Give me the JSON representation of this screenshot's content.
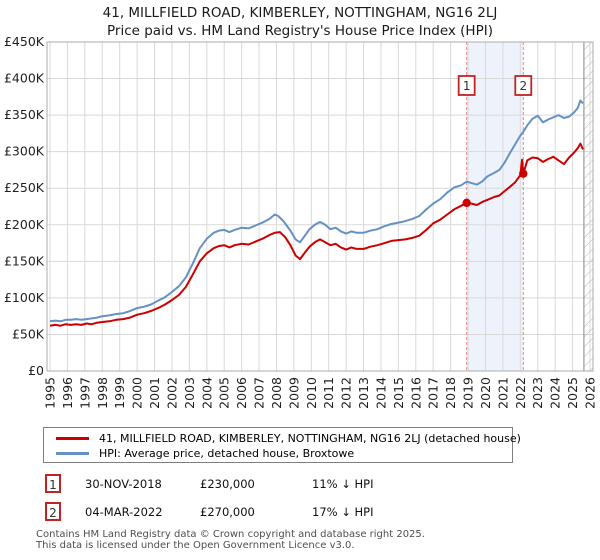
{
  "title": {
    "line1": "41, MILLFIELD ROAD, KIMBERLEY, NOTTINGHAM, NG16 2LJ",
    "line2": "Price paid vs. HM Land Registry's House Price Index (HPI)"
  },
  "chart_data": {
    "type": "line",
    "title": "Price paid vs. HM Land Registry's House Price Index (HPI)",
    "xlim": [
      1995,
      2026
    ],
    "ylim": [
      0,
      450
    ],
    "y_unit": "GBP thousands",
    "grid": true,
    "x_ticks": [
      1995,
      1996,
      1997,
      1998,
      1999,
      2000,
      2001,
      2002,
      2003,
      2004,
      2005,
      2006,
      2007,
      2008,
      2009,
      2010,
      2011,
      2012,
      2013,
      2014,
      2015,
      2016,
      2017,
      2018,
      2019,
      2020,
      2021,
      2022,
      2023,
      2024,
      2025,
      2026
    ],
    "y_ticks": [
      [
        0,
        "£0"
      ],
      [
        50,
        "£50K"
      ],
      [
        100,
        "£100K"
      ],
      [
        150,
        "£150K"
      ],
      [
        200,
        "£200K"
      ],
      [
        250,
        "£250K"
      ],
      [
        300,
        "£300K"
      ],
      [
        350,
        "£350K"
      ],
      [
        400,
        "£400K"
      ],
      [
        450,
        "£450K"
      ]
    ],
    "future_hatch_start": 2025.65,
    "series": [
      {
        "name": "41, MILLFIELD ROAD, KIMBERLEY, NOTTINGHAM, NG16 2LJ (detached house)",
        "color": "#cc0000",
        "points": [
          [
            1995.0,
            62
          ],
          [
            1995.3,
            63
          ],
          [
            1995.6,
            62
          ],
          [
            1995.9,
            64
          ],
          [
            1996.2,
            63
          ],
          [
            1996.5,
            64
          ],
          [
            1996.8,
            63
          ],
          [
            1997.1,
            65
          ],
          [
            1997.4,
            64
          ],
          [
            1997.7,
            66
          ],
          [
            1998.0,
            67
          ],
          [
            1998.4,
            68
          ],
          [
            1998.8,
            70
          ],
          [
            1999.2,
            71
          ],
          [
            1999.6,
            73
          ],
          [
            2000.0,
            77
          ],
          [
            2000.4,
            79
          ],
          [
            2000.8,
            82
          ],
          [
            2001.2,
            86
          ],
          [
            2001.6,
            91
          ],
          [
            2002.0,
            97
          ],
          [
            2002.4,
            104
          ],
          [
            2002.8,
            115
          ],
          [
            2003.2,
            132
          ],
          [
            2003.6,
            150
          ],
          [
            2004.0,
            161
          ],
          [
            2004.4,
            168
          ],
          [
            2004.7,
            171
          ],
          [
            2005.0,
            172
          ],
          [
            2005.3,
            169
          ],
          [
            2005.6,
            172
          ],
          [
            2006.0,
            174
          ],
          [
            2006.4,
            173
          ],
          [
            2006.8,
            177
          ],
          [
            2007.2,
            181
          ],
          [
            2007.6,
            186
          ],
          [
            2007.9,
            189
          ],
          [
            2008.2,
            190
          ],
          [
            2008.5,
            183
          ],
          [
            2008.8,
            172
          ],
          [
            2009.1,
            158
          ],
          [
            2009.35,
            153
          ],
          [
            2009.6,
            161
          ],
          [
            2009.9,
            170
          ],
          [
            2010.2,
            176
          ],
          [
            2010.5,
            180
          ],
          [
            2010.8,
            176
          ],
          [
            2011.1,
            172
          ],
          [
            2011.4,
            174
          ],
          [
            2011.7,
            169
          ],
          [
            2012.0,
            166
          ],
          [
            2012.3,
            169
          ],
          [
            2012.6,
            167
          ],
          [
            2013.0,
            167
          ],
          [
            2013.4,
            170
          ],
          [
            2013.8,
            172
          ],
          [
            2014.2,
            175
          ],
          [
            2014.6,
            178
          ],
          [
            2015.0,
            179
          ],
          [
            2015.4,
            180
          ],
          [
            2015.8,
            182
          ],
          [
            2016.2,
            185
          ],
          [
            2016.6,
            193
          ],
          [
            2017.0,
            202
          ],
          [
            2017.4,
            207
          ],
          [
            2017.8,
            214
          ],
          [
            2018.2,
            221
          ],
          [
            2018.6,
            226
          ],
          [
            2018.92,
            230
          ],
          [
            2019.2,
            229
          ],
          [
            2019.5,
            227
          ],
          [
            2019.8,
            231
          ],
          [
            2020.1,
            234
          ],
          [
            2020.5,
            238
          ],
          [
            2020.8,
            240
          ],
          [
            2021.1,
            246
          ],
          [
            2021.4,
            252
          ],
          [
            2021.7,
            258
          ],
          [
            2022.0,
            268
          ],
          [
            2022.1,
            289
          ],
          [
            2022.17,
            270
          ],
          [
            2022.4,
            288
          ],
          [
            2022.7,
            292
          ],
          [
            2023.0,
            291
          ],
          [
            2023.3,
            286
          ],
          [
            2023.6,
            290
          ],
          [
            2023.9,
            293
          ],
          [
            2024.2,
            288
          ],
          [
            2024.5,
            283
          ],
          [
            2024.8,
            292
          ],
          [
            2025.1,
            299
          ],
          [
            2025.3,
            305
          ],
          [
            2025.45,
            311
          ],
          [
            2025.6,
            303
          ]
        ]
      },
      {
        "name": "HPI: Average price, detached house, Broxtowe",
        "color": "#6691c4",
        "points": [
          [
            1995.0,
            68
          ],
          [
            1995.3,
            69
          ],
          [
            1995.6,
            68
          ],
          [
            1995.9,
            70
          ],
          [
            1996.2,
            70
          ],
          [
            1996.5,
            71
          ],
          [
            1996.8,
            70
          ],
          [
            1997.1,
            71
          ],
          [
            1997.4,
            72
          ],
          [
            1997.7,
            73
          ],
          [
            1998.0,
            75
          ],
          [
            1998.4,
            76
          ],
          [
            1998.8,
            78
          ],
          [
            1999.2,
            79
          ],
          [
            1999.6,
            82
          ],
          [
            2000.0,
            86
          ],
          [
            2000.4,
            88
          ],
          [
            2000.8,
            91
          ],
          [
            2001.2,
            96
          ],
          [
            2001.6,
            101
          ],
          [
            2002.0,
            108
          ],
          [
            2002.4,
            116
          ],
          [
            2002.8,
            128
          ],
          [
            2003.2,
            147
          ],
          [
            2003.6,
            168
          ],
          [
            2004.0,
            181
          ],
          [
            2004.4,
            189
          ],
          [
            2004.7,
            192
          ],
          [
            2005.0,
            193
          ],
          [
            2005.3,
            190
          ],
          [
            2005.6,
            193
          ],
          [
            2006.0,
            196
          ],
          [
            2006.4,
            195
          ],
          [
            2006.8,
            199
          ],
          [
            2007.2,
            203
          ],
          [
            2007.6,
            208
          ],
          [
            2007.9,
            214
          ],
          [
            2008.1,
            212
          ],
          [
            2008.4,
            205
          ],
          [
            2008.8,
            192
          ],
          [
            2009.1,
            180
          ],
          [
            2009.35,
            176
          ],
          [
            2009.6,
            184
          ],
          [
            2009.9,
            194
          ],
          [
            2010.2,
            200
          ],
          [
            2010.5,
            204
          ],
          [
            2010.8,
            200
          ],
          [
            2011.1,
            194
          ],
          [
            2011.4,
            196
          ],
          [
            2011.7,
            191
          ],
          [
            2012.0,
            188
          ],
          [
            2012.3,
            191
          ],
          [
            2012.6,
            189
          ],
          [
            2013.0,
            189
          ],
          [
            2013.4,
            192
          ],
          [
            2013.8,
            194
          ],
          [
            2014.2,
            198
          ],
          [
            2014.6,
            201
          ],
          [
            2015.0,
            203
          ],
          [
            2015.4,
            205
          ],
          [
            2015.8,
            208
          ],
          [
            2016.2,
            212
          ],
          [
            2016.6,
            221
          ],
          [
            2017.0,
            229
          ],
          [
            2017.4,
            235
          ],
          [
            2017.8,
            244
          ],
          [
            2018.2,
            251
          ],
          [
            2018.6,
            254
          ],
          [
            2018.92,
            259
          ],
          [
            2019.2,
            257
          ],
          [
            2019.5,
            255
          ],
          [
            2019.8,
            259
          ],
          [
            2020.1,
            266
          ],
          [
            2020.5,
            271
          ],
          [
            2020.8,
            275
          ],
          [
            2021.1,
            285
          ],
          [
            2021.4,
            298
          ],
          [
            2021.7,
            310
          ],
          [
            2022.0,
            322
          ],
          [
            2022.17,
            327
          ],
          [
            2022.4,
            336
          ],
          [
            2022.7,
            345
          ],
          [
            2023.0,
            349
          ],
          [
            2023.3,
            340
          ],
          [
            2023.6,
            344
          ],
          [
            2023.9,
            347
          ],
          [
            2024.2,
            350
          ],
          [
            2024.5,
            346
          ],
          [
            2024.8,
            348
          ],
          [
            2025.1,
            354
          ],
          [
            2025.3,
            360
          ],
          [
            2025.45,
            370
          ],
          [
            2025.6,
            366
          ]
        ]
      }
    ],
    "sales": [
      {
        "num": "1",
        "x": 2018.92,
        "y": 230,
        "date": "30-NOV-2018",
        "price": "£230,000",
        "delta": "11% ↓ HPI"
      },
      {
        "num": "2",
        "x": 2022.17,
        "y": 270,
        "date": "04-MAR-2022",
        "price": "£270,000",
        "delta": "17% ↓ HPI"
      }
    ],
    "colors": {
      "grid": "#d9d9d9",
      "border": "#ababab",
      "band": "#eef3fb",
      "dashed": "#ef8484",
      "hatch": "#b9b9b9",
      "hatch_edge": "#9a9a9a",
      "dot": "#cc0000",
      "flag_border": "#c22222",
      "tick_text": "#1f1f1f"
    }
  },
  "legend": {
    "items": [
      {
        "label": "41, MILLFIELD ROAD, KIMBERLEY, NOTTINGHAM, NG16 2LJ (detached house)",
        "color": "#cc0000"
      },
      {
        "label": "HPI: Average price, detached house, Broxtowe",
        "color": "#6691c4"
      }
    ]
  },
  "table": {
    "rows": [
      {
        "num": "1",
        "date": "30-NOV-2018",
        "price": "£230,000",
        "delta": "11% ↓ HPI"
      },
      {
        "num": "2",
        "date": "04-MAR-2022",
        "price": "£270,000",
        "delta": "17% ↓ HPI"
      }
    ]
  },
  "footer": {
    "line1": "Contains HM Land Registry data © Crown copyright and database right 2025.",
    "line2": "This data is licensed under the Open Government Licence v3.0."
  }
}
